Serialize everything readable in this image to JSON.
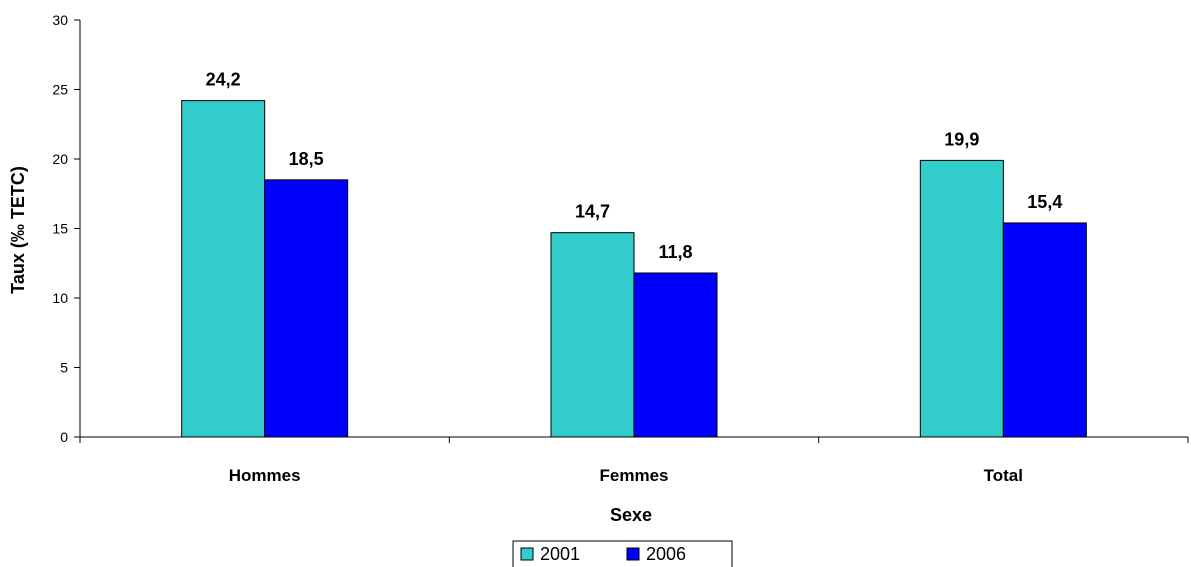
{
  "chart_data": {
    "type": "bar",
    "categories": [
      "Hommes",
      "Femmes",
      "Total"
    ],
    "series": [
      {
        "name": "2001",
        "color": "#33CCCC",
        "values": [
          24.2,
          14.7,
          19.9
        ]
      },
      {
        "name": "2006",
        "color": "#0000FF",
        "values": [
          18.5,
          11.8,
          15.4
        ]
      }
    ],
    "data_labels": [
      [
        "24,2",
        "14,7",
        "19,9"
      ],
      [
        "18,5",
        "11,8",
        "15,4"
      ]
    ],
    "yticks": [
      "0",
      "5",
      "10",
      "15",
      "20",
      "25",
      "30"
    ],
    "xlabel": "Sexe",
    "ylabel": "Taux (‰ TETC)",
    "ylim": [
      0,
      30
    ],
    "grid": false,
    "legend_position": "bottom"
  }
}
